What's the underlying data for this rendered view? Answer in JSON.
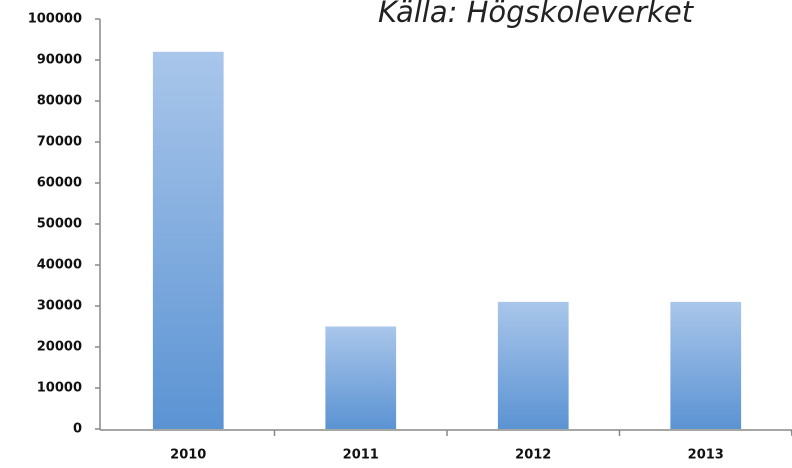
{
  "chart_data": {
    "type": "bar",
    "title": "Källa: Högskoleverket",
    "categories": [
      "2010",
      "2011",
      "2012",
      "2013"
    ],
    "values": [
      92000,
      25000,
      31000,
      31000
    ],
    "color": "#5b93d3",
    "ylim": [
      0,
      100000
    ],
    "yticks": [
      0,
      10000,
      20000,
      30000,
      40000,
      50000,
      60000,
      70000,
      80000,
      90000,
      100000
    ],
    "grid": false
  }
}
